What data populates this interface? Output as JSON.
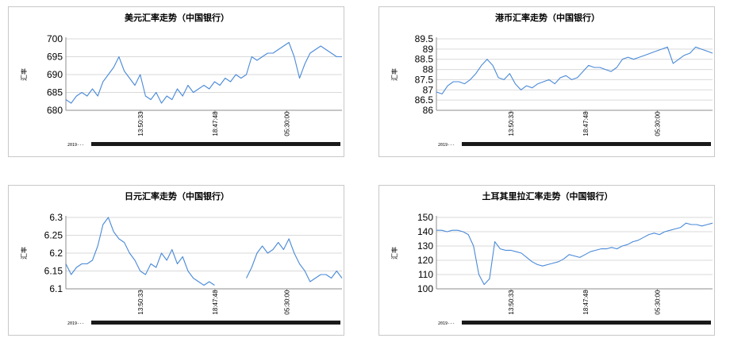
{
  "chart_data": [
    {
      "type": "line",
      "title": "美元汇率走势（中国银行）",
      "ylabel": "汇率",
      "yticks": [
        680,
        685,
        690,
        695,
        700
      ],
      "ylim": [
        680,
        700
      ],
      "xticks": [
        "13:50:33",
        "18:47:48",
        "05:30:00"
      ],
      "x_crowd_label": "2019---",
      "color": "#4a8ad8",
      "series": [
        {
          "values": [
            683,
            682,
            684,
            685,
            684,
            686,
            684,
            688,
            690,
            692,
            695,
            691,
            689,
            687,
            690,
            684,
            683,
            685,
            682,
            684,
            683,
            686,
            684,
            687,
            685,
            686,
            687,
            686,
            688,
            687,
            689,
            688,
            690,
            689,
            690,
            695,
            694,
            695,
            696,
            696,
            697,
            698,
            699,
            695,
            689,
            693,
            696,
            697,
            698,
            697,
            696,
            695,
            695
          ]
        }
      ]
    },
    {
      "type": "line",
      "title": "港币汇率走势（中国银行）",
      "ylabel": "汇率",
      "yticks": [
        86,
        86.5,
        87,
        87.5,
        88,
        88.5,
        89,
        89.5
      ],
      "ylim": [
        86,
        89.5
      ],
      "xticks": [
        "13:50:33",
        "18:47:48",
        "05:30:00"
      ],
      "x_crowd_label": "2019---",
      "color": "#4a8ad8",
      "series": [
        {
          "values": [
            86.9,
            86.8,
            87.2,
            87.4,
            87.4,
            87.3,
            87.5,
            87.8,
            88.2,
            88.5,
            88.2,
            87.6,
            87.5,
            87.8,
            87.3,
            87.0,
            87.2,
            87.1,
            87.3,
            87.4,
            87.5,
            87.3,
            87.6,
            87.7,
            87.5,
            87.6,
            87.9,
            88.2,
            88.1,
            88.1,
            88.0,
            87.9,
            88.1,
            88.5,
            88.6,
            88.5,
            88.6,
            88.7,
            88.8,
            88.9,
            89.0,
            89.1,
            88.3,
            88.5,
            88.7,
            88.8,
            89.1,
            89.0,
            88.9,
            88.8
          ]
        }
      ]
    },
    {
      "type": "line",
      "title": "日元汇率走势（中国银行）",
      "ylabel": "汇率",
      "yticks": [
        6.1,
        6.15,
        6.2,
        6.25,
        6.3
      ],
      "ylim": [
        6.1,
        6.3
      ],
      "xticks": [
        "13:50:33",
        "18:47:48",
        "05:30:00"
      ],
      "x_crowd_label": "2019---",
      "color": "#4a8ad8",
      "series": [
        {
          "values": [
            6.17,
            6.14,
            6.16,
            6.17,
            6.17,
            6.18,
            6.22,
            6.28,
            6.3,
            6.26,
            6.24,
            6.23,
            6.2,
            6.18,
            6.15,
            6.14,
            6.17,
            6.16,
            6.2,
            6.18,
            6.21,
            6.17,
            6.19,
            6.15,
            6.13,
            6.12,
            6.11,
            6.12,
            6.11,
            null,
            null,
            null,
            null,
            null,
            6.13,
            6.16,
            6.2,
            6.22,
            6.2,
            6.21,
            6.23,
            6.21,
            6.24,
            6.2,
            6.17,
            6.15,
            6.12,
            6.13,
            6.14,
            6.14,
            6.13,
            6.15,
            6.13
          ]
        }
      ]
    },
    {
      "type": "line",
      "title": "土耳其里拉汇率走势（中国银行）",
      "ylabel": "汇率",
      "yticks": [
        100,
        110,
        120,
        130,
        140,
        150
      ],
      "ylim": [
        100,
        150
      ],
      "xticks": [
        "13:50:33",
        "18:47:48",
        "05:30:00"
      ],
      "x_crowd_label": "2019---",
      "color": "#4a8ad8",
      "series": [
        {
          "values": [
            141,
            141,
            140,
            141,
            141,
            140,
            138,
            130,
            110,
            103,
            107,
            133,
            128,
            127,
            127,
            126,
            125,
            122,
            119,
            117,
            116,
            117,
            118,
            119,
            121,
            124,
            123,
            122,
            124,
            126,
            127,
            128,
            128,
            129,
            128,
            130,
            131,
            133,
            134,
            136,
            138,
            139,
            138,
            140,
            141,
            142,
            143,
            146,
            145,
            145,
            144,
            145,
            146
          ]
        }
      ]
    }
  ]
}
